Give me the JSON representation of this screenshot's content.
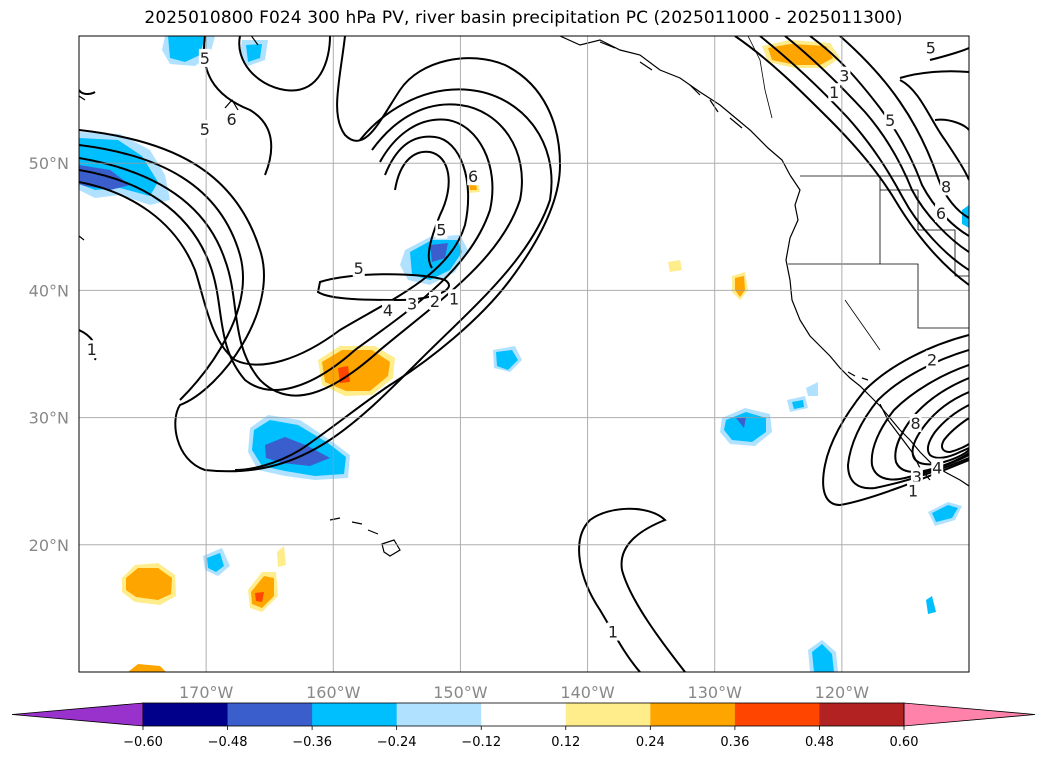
{
  "title": "2025010800 F024 300 hPa PV, river basin precipitation PC (2025011000 - 2025011300)",
  "map": {
    "lon_range": [
      -180,
      -110
    ],
    "lat_range": [
      10,
      60
    ],
    "lat_ticks": [
      {
        "value": 50,
        "label": "50°N"
      },
      {
        "value": 40,
        "label": "40°N"
      },
      {
        "value": 30,
        "label": "30°N"
      },
      {
        "value": 20,
        "label": "20°N"
      }
    ],
    "lon_ticks": [
      {
        "value": -170,
        "label": "170°W"
      },
      {
        "value": -160,
        "label": "160°W"
      },
      {
        "value": -150,
        "label": "150°W"
      },
      {
        "value": -140,
        "label": "140°W"
      },
      {
        "value": -130,
        "label": "130°W"
      },
      {
        "value": -120,
        "label": "120°W"
      }
    ],
    "grid": true,
    "contour_labels": [
      {
        "text": "5",
        "lon": -158,
        "lat": 41.7
      },
      {
        "text": "4",
        "lon": -155.7,
        "lat": 38.4
      },
      {
        "text": "3",
        "lon": -153.8,
        "lat": 38.9
      },
      {
        "text": "2",
        "lon": -152,
        "lat": 39.1
      },
      {
        "text": "1",
        "lon": -150.5,
        "lat": 39.3
      },
      {
        "text": "6",
        "lon": -149,
        "lat": 48.9
      },
      {
        "text": "5",
        "lon": -151.5,
        "lat": 44.7
      },
      {
        "text": "5",
        "lon": -170.1,
        "lat": 58.2
      },
      {
        "text": "5",
        "lon": -170.1,
        "lat": 52.6
      },
      {
        "text": "6",
        "lon": -168,
        "lat": 53.4
      },
      {
        "text": "1",
        "lon": -179,
        "lat": 35.3
      },
      {
        "text": "1",
        "lon": -120.6,
        "lat": 55.5
      },
      {
        "text": "3",
        "lon": -119.8,
        "lat": 56.8
      },
      {
        "text": "5",
        "lon": -113,
        "lat": 59
      },
      {
        "text": "5",
        "lon": -116.2,
        "lat": 53.3
      },
      {
        "text": "8",
        "lon": -111.8,
        "lat": 48.1
      },
      {
        "text": "6",
        "lon": -112.2,
        "lat": 46
      },
      {
        "text": "2",
        "lon": -112.9,
        "lat": 34.5
      },
      {
        "text": "8",
        "lon": -114.2,
        "lat": 29.5
      },
      {
        "text": "4",
        "lon": -112.5,
        "lat": 26
      },
      {
        "text": "3",
        "lon": -114.1,
        "lat": 25.3
      },
      {
        "text": "1",
        "lon": -114.4,
        "lat": 24.2
      },
      {
        "text": "1",
        "lon": -138,
        "lat": 13.1
      }
    ]
  },
  "colorbar": {
    "colors": [
      "#9932cc",
      "#00008b",
      "#3a5fcd",
      "#00bfff",
      "#b0e2ff",
      "#ffffff",
      "#ffec8b",
      "#ffa500",
      "#ff4500",
      "#b22222",
      "#ff82ab"
    ],
    "tick_labels": [
      "−0.60",
      "−0.48",
      "−0.36",
      "−0.24",
      "−0.12",
      "0.12",
      "0.24",
      "0.36",
      "0.48",
      "0.60"
    ],
    "extend": "both"
  }
}
